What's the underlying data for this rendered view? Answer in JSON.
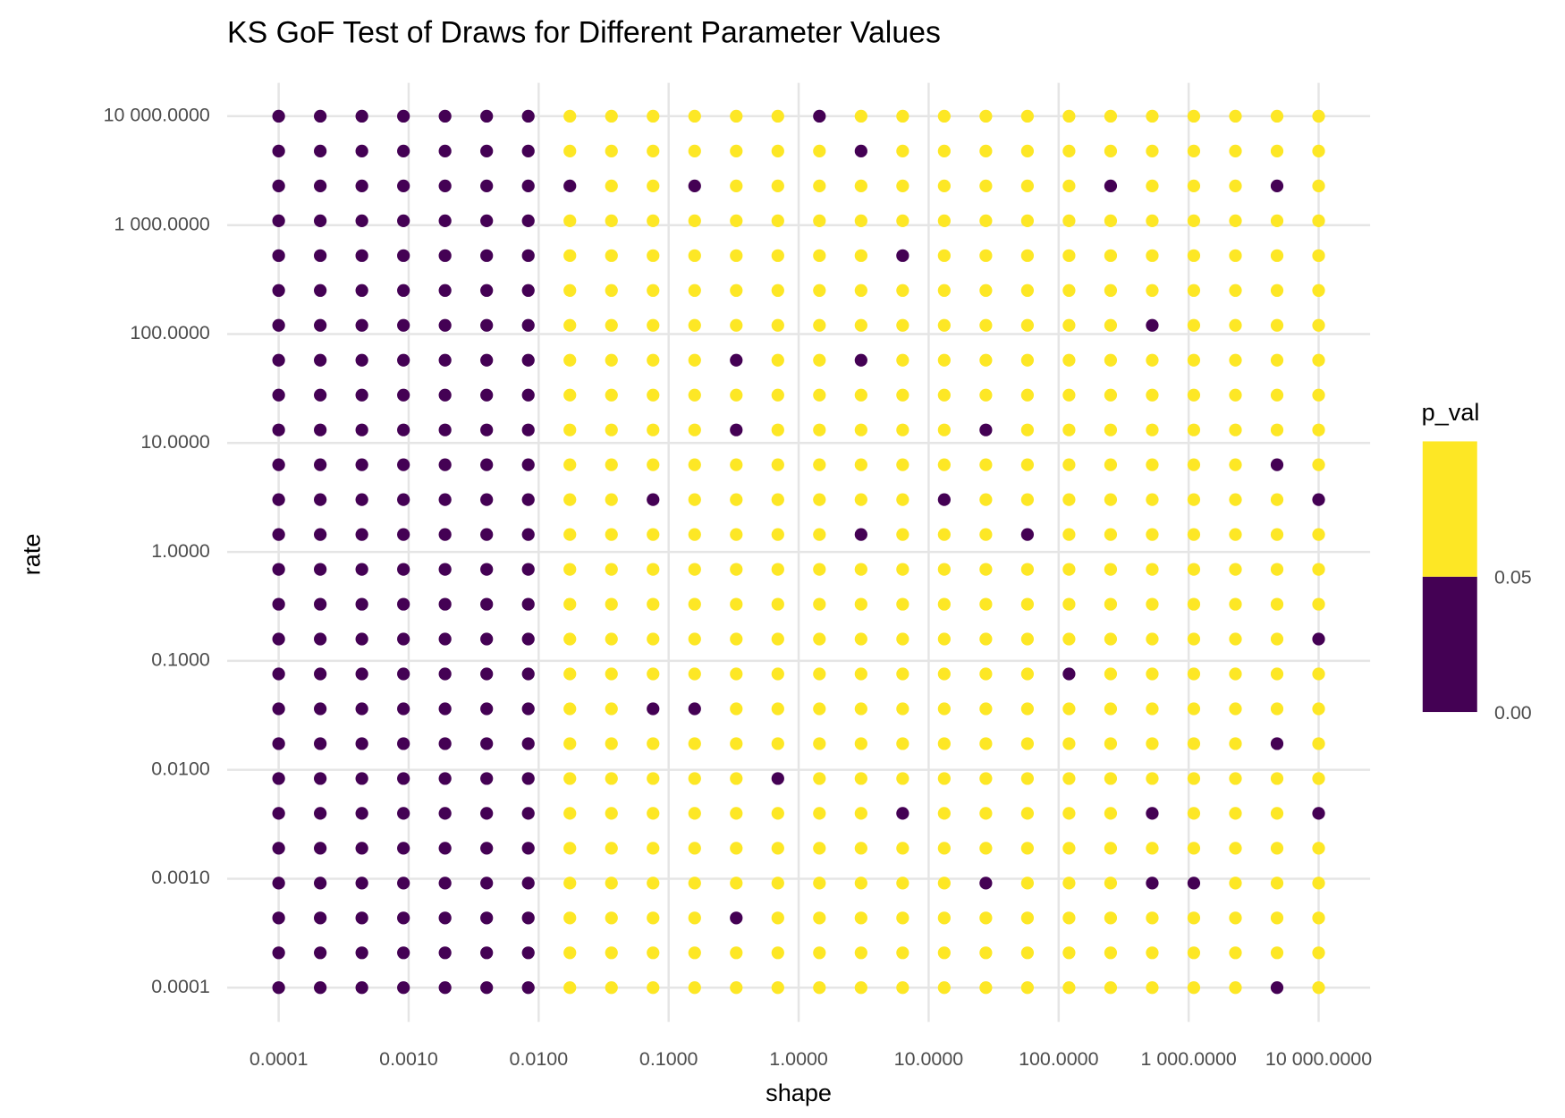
{
  "chart_data": {
    "type": "scatter",
    "title": "KS GoF Test of Draws for Different Parameter Values",
    "x_label": "shape",
    "y_label": "rate",
    "x_scale": "log",
    "y_scale": "log",
    "grid": true,
    "x": [
      0.0001,
      0.0002089,
      0.0004365,
      0.000912,
      0.001905,
      0.003981,
      0.008318,
      0.01738,
      0.03631,
      0.07586,
      0.1585,
      0.3311,
      0.6918,
      1.445,
      3.02,
      6.31,
      13.18,
      27.54,
      57.54,
      120.2,
      251.2,
      524.8,
      1096,
      2291,
      4786,
      10000
    ],
    "y": [
      0.0001,
      0.0002089,
      0.0004365,
      0.000912,
      0.001905,
      0.003981,
      0.008318,
      0.01738,
      0.03631,
      0.07586,
      0.1585,
      0.3311,
      0.6918,
      1.445,
      3.02,
      6.31,
      13.18,
      27.54,
      57.54,
      120.2,
      251.2,
      524.8,
      1096,
      2291,
      4786,
      10000
    ],
    "p_val": [
      [
        0,
        0,
        0,
        0,
        0,
        0,
        0,
        0.5,
        0.5,
        0.5,
        0.5,
        0.5,
        0.5,
        0.5,
        0.5,
        0.5,
        0.5,
        0.5,
        0.5,
        0.5,
        0.5,
        0.5,
        0.5,
        0.5,
        0,
        0.5
      ],
      [
        0,
        0,
        0,
        0,
        0,
        0,
        0,
        0.5,
        0.5,
        0.5,
        0.5,
        0.5,
        0.5,
        0.5,
        0.5,
        0.5,
        0.5,
        0.5,
        0.5,
        0.5,
        0.5,
        0.5,
        0.5,
        0.5,
        0.5,
        0.5
      ],
      [
        0,
        0,
        0,
        0,
        0,
        0,
        0,
        0.5,
        0.5,
        0.5,
        0.5,
        0,
        0.5,
        0.5,
        0.5,
        0.5,
        0.5,
        0.5,
        0.5,
        0.5,
        0.5,
        0.5,
        0.5,
        0.5,
        0.5,
        0.5
      ],
      [
        0,
        0,
        0,
        0,
        0,
        0,
        0,
        0.5,
        0.5,
        0.5,
        0.5,
        0.5,
        0.5,
        0.5,
        0.5,
        0.5,
        0.5,
        0,
        0.5,
        0.5,
        0.5,
        0,
        0,
        0.5,
        0.5,
        0.5
      ],
      [
        0,
        0,
        0,
        0,
        0,
        0,
        0,
        0.5,
        0.5,
        0.5,
        0.5,
        0.5,
        0.5,
        0.5,
        0.5,
        0.5,
        0.5,
        0.5,
        0.5,
        0.5,
        0.5,
        0.5,
        0.5,
        0.5,
        0.5,
        0.5
      ],
      [
        0,
        0,
        0,
        0,
        0,
        0,
        0,
        0.5,
        0.5,
        0.5,
        0.5,
        0.5,
        0.5,
        0.5,
        0.5,
        0,
        0.5,
        0.5,
        0.5,
        0.5,
        0.5,
        0,
        0.5,
        0.5,
        0.5,
        0
      ],
      [
        0,
        0,
        0,
        0,
        0,
        0,
        0,
        0.5,
        0.5,
        0.5,
        0.5,
        0.5,
        0,
        0.5,
        0.5,
        0.5,
        0.5,
        0.5,
        0.5,
        0.5,
        0.5,
        0.5,
        0.5,
        0.5,
        0.5,
        0.5
      ],
      [
        0,
        0,
        0,
        0,
        0,
        0,
        0,
        0.5,
        0.5,
        0.5,
        0.5,
        0.5,
        0.5,
        0.5,
        0.5,
        0.5,
        0.5,
        0.5,
        0.5,
        0.5,
        0.5,
        0.5,
        0.5,
        0.5,
        0,
        0.5
      ],
      [
        0,
        0,
        0,
        0,
        0,
        0,
        0,
        0.5,
        0.5,
        0,
        0,
        0.5,
        0.5,
        0.5,
        0.5,
        0.5,
        0.5,
        0.5,
        0.5,
        0.5,
        0.5,
        0.5,
        0.5,
        0.5,
        0.5,
        0.5
      ],
      [
        0,
        0,
        0,
        0,
        0,
        0,
        0,
        0.5,
        0.5,
        0.5,
        0.5,
        0.5,
        0.5,
        0.5,
        0.5,
        0.5,
        0.5,
        0.5,
        0.5,
        0,
        0.5,
        0.5,
        0.5,
        0.5,
        0.5,
        0.5
      ],
      [
        0,
        0,
        0,
        0,
        0,
        0,
        0,
        0.5,
        0.5,
        0.5,
        0.5,
        0.5,
        0.5,
        0.5,
        0.5,
        0.5,
        0.5,
        0.5,
        0.5,
        0.5,
        0.5,
        0.5,
        0.5,
        0.5,
        0.5,
        0
      ],
      [
        0,
        0,
        0,
        0,
        0,
        0,
        0,
        0.5,
        0.5,
        0.5,
        0.5,
        0.5,
        0.5,
        0.5,
        0.5,
        0.5,
        0.5,
        0.5,
        0.5,
        0.5,
        0.5,
        0.5,
        0.5,
        0.5,
        0.5,
        0.5
      ],
      [
        0,
        0,
        0,
        0,
        0,
        0,
        0,
        0.5,
        0.5,
        0.5,
        0.5,
        0.5,
        0.5,
        0.5,
        0.5,
        0.5,
        0.5,
        0.5,
        0.5,
        0.5,
        0.5,
        0.5,
        0.5,
        0.5,
        0.5,
        0.5
      ],
      [
        0,
        0,
        0,
        0,
        0,
        0,
        0,
        0.5,
        0.5,
        0.5,
        0.5,
        0.5,
        0.5,
        0.5,
        0,
        0.5,
        0.5,
        0.5,
        0,
        0.5,
        0.5,
        0.5,
        0.5,
        0.5,
        0.5,
        0.5
      ],
      [
        0,
        0,
        0,
        0,
        0,
        0,
        0,
        0.5,
        0.5,
        0,
        0.5,
        0.5,
        0.5,
        0.5,
        0.5,
        0.5,
        0,
        0.5,
        0.5,
        0.5,
        0.5,
        0.5,
        0.5,
        0.5,
        0.5,
        0
      ],
      [
        0,
        0,
        0,
        0,
        0,
        0,
        0,
        0.5,
        0.5,
        0.5,
        0.5,
        0.5,
        0.5,
        0.5,
        0.5,
        0.5,
        0.5,
        0.5,
        0.5,
        0.5,
        0.5,
        0.5,
        0.5,
        0.5,
        0,
        0.5
      ],
      [
        0,
        0,
        0,
        0,
        0,
        0,
        0,
        0.5,
        0.5,
        0.5,
        0.5,
        0,
        0.5,
        0.5,
        0.5,
        0.5,
        0.5,
        0,
        0.5,
        0.5,
        0.5,
        0.5,
        0.5,
        0.5,
        0.5,
        0.5
      ],
      [
        0,
        0,
        0,
        0,
        0,
        0,
        0,
        0.5,
        0.5,
        0.5,
        0.5,
        0.5,
        0.5,
        0.5,
        0.5,
        0.5,
        0.5,
        0.5,
        0.5,
        0.5,
        0.5,
        0.5,
        0.5,
        0.5,
        0.5,
        0.5
      ],
      [
        0,
        0,
        0,
        0,
        0,
        0,
        0,
        0.5,
        0.5,
        0.5,
        0.5,
        0,
        0.5,
        0.5,
        0,
        0.5,
        0.5,
        0.5,
        0.5,
        0.5,
        0.5,
        0.5,
        0.5,
        0.5,
        0.5,
        0.5
      ],
      [
        0,
        0,
        0,
        0,
        0,
        0,
        0,
        0.5,
        0.5,
        0.5,
        0.5,
        0.5,
        0.5,
        0.5,
        0.5,
        0.5,
        0.5,
        0.5,
        0.5,
        0.5,
        0.5,
        0,
        0.5,
        0.5,
        0.5,
        0.5
      ],
      [
        0,
        0,
        0,
        0,
        0,
        0,
        0,
        0.5,
        0.5,
        0.5,
        0.5,
        0.5,
        0.5,
        0.5,
        0.5,
        0.5,
        0.5,
        0.5,
        0.5,
        0.5,
        0.5,
        0.5,
        0.5,
        0.5,
        0.5,
        0.5
      ],
      [
        0,
        0,
        0,
        0,
        0,
        0,
        0,
        0.5,
        0.5,
        0.5,
        0.5,
        0.5,
        0.5,
        0.5,
        0.5,
        0,
        0.5,
        0.5,
        0.5,
        0.5,
        0.5,
        0.5,
        0.5,
        0.5,
        0.5,
        0.5
      ],
      [
        0,
        0,
        0,
        0,
        0,
        0,
        0,
        0.5,
        0.5,
        0.5,
        0.5,
        0.5,
        0.5,
        0.5,
        0.5,
        0.5,
        0.5,
        0.5,
        0.5,
        0.5,
        0.5,
        0.5,
        0.5,
        0.5,
        0.5,
        0.5
      ],
      [
        0,
        0,
        0,
        0,
        0,
        0,
        0,
        0,
        0.5,
        0.5,
        0,
        0.5,
        0.5,
        0.5,
        0.5,
        0.5,
        0.5,
        0.5,
        0.5,
        0.5,
        0,
        0.5,
        0.5,
        0.5,
        0,
        0.5
      ],
      [
        0,
        0,
        0,
        0,
        0,
        0,
        0,
        0.5,
        0.5,
        0.5,
        0.5,
        0.5,
        0.5,
        0.5,
        0,
        0.5,
        0.5,
        0.5,
        0.5,
        0.5,
        0.5,
        0.5,
        0.5,
        0.5,
        0.5,
        0.5
      ],
      [
        0,
        0,
        0,
        0,
        0,
        0,
        0,
        0.5,
        0.5,
        0.5,
        0.5,
        0.5,
        0.5,
        0,
        0.5,
        0.5,
        0.5,
        0.5,
        0.5,
        0.5,
        0.5,
        0.5,
        0.5,
        0.5,
        0.5,
        0.5
      ]
    ],
    "xlim": [
      0.0001,
      10000
    ],
    "ylim": [
      0.0001,
      10000
    ],
    "xticks": [
      0.0001,
      {
        "value": 0.001,
        "label": "0.0010"
      },
      {
        "value": 0.01,
        "label": "0.0100"
      },
      {
        "value": 0.1,
        "label": "0.1000"
      },
      {
        "value": 1,
        "label": "1.0000"
      },
      {
        "value": 10,
        "label": "10.0000"
      },
      {
        "value": 100,
        "label": "100.0000"
      },
      {
        "value": 1000,
        "label": "1 000.0000"
      },
      {
        "value": 10000,
        "label": "10 000.0000"
      }
    ],
    "yticks": [
      0.0001,
      {
        "value": 0.001,
        "label": "0.0010"
      },
      {
        "value": 0.01,
        "label": "0.0100"
      },
      {
        "value": 0.1,
        "label": "0.1000"
      },
      {
        "value": 1,
        "label": "1.0000"
      },
      {
        "value": 10,
        "label": "10.0000"
      },
      {
        "value": 100,
        "label": "100.0000"
      },
      {
        "value": 1000,
        "label": "1 000.0000"
      },
      {
        "value": 10000,
        "label": "10 000.0000"
      }
    ],
    "legend": {
      "title": "p_val",
      "breaks": [
        {
          "value": 0,
          "label": "0.00"
        },
        {
          "value": 0.05,
          "label": "0.05"
        }
      ],
      "colors": [
        "#440154",
        "#FDE725"
      ]
    }
  }
}
